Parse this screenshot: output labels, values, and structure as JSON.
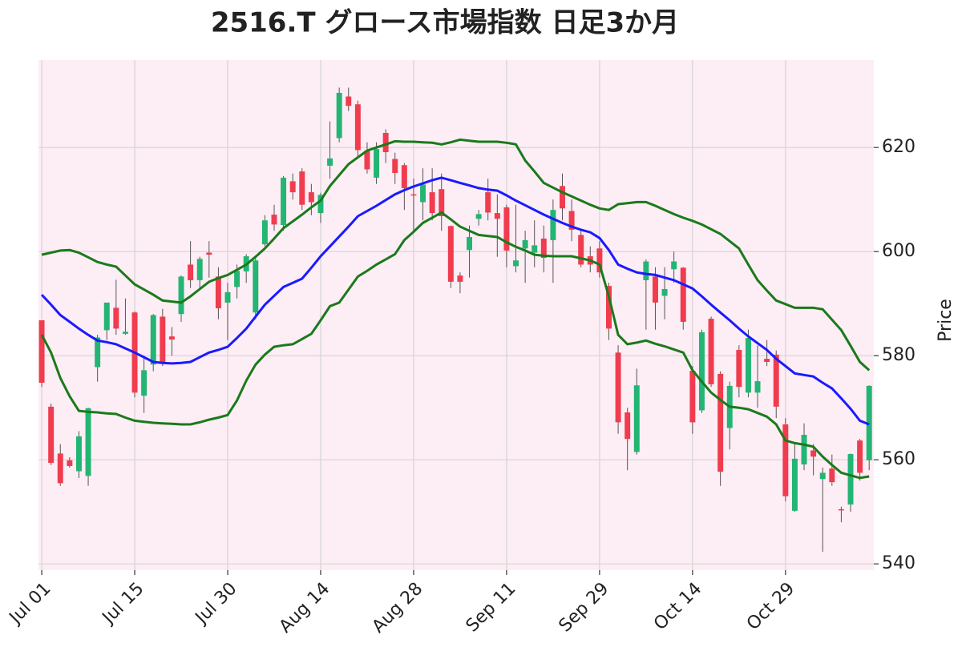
{
  "chart_data": {
    "type": "candlestick",
    "title": "2516.T グロース市場指数 日足3か月",
    "y_label": "Price",
    "categories": [
      "Jul 01",
      null,
      null,
      null,
      null,
      null,
      null,
      null,
      null,
      null,
      "Jul 15",
      null,
      null,
      null,
      null,
      null,
      null,
      null,
      null,
      null,
      "Jul 30",
      null,
      null,
      null,
      null,
      null,
      null,
      null,
      null,
      null,
      "Aug 14",
      null,
      null,
      null,
      null,
      null,
      null,
      null,
      null,
      null,
      "Aug 28",
      null,
      null,
      null,
      null,
      null,
      null,
      null,
      null,
      null,
      "Sep 11",
      null,
      null,
      null,
      null,
      null,
      null,
      null,
      null,
      null,
      "Sep 29",
      null,
      null,
      null,
      null,
      null,
      null,
      null,
      null,
      null,
      "Oct 14",
      null,
      null,
      null,
      null,
      null,
      null,
      null,
      null,
      null,
      "Oct 29",
      null,
      null,
      null,
      null,
      null,
      null,
      null,
      null,
      null
    ],
    "open": [
      586.8,
      570.2,
      561.2,
      559.9,
      557.8,
      556.9,
      577.8,
      584.9,
      589.2,
      584.2,
      588.3,
      572.3,
      578.3,
      587.5,
      583.7,
      588,
      597.5,
      594.5,
      599.8,
      595.2,
      590.2,
      593.2,
      596.2,
      588.3,
      601.4,
      607.1,
      605.1,
      613.5,
      615.4,
      611.4,
      607.4,
      616.5,
      621.8,
      629.8,
      628.3,
      619.4,
      614.2,
      622.8,
      617.8,
      616.6,
      611,
      609.5,
      611.4,
      612,
      604.9,
      595.4,
      600.3,
      606.3,
      611.4,
      607.4,
      608.5,
      597.2,
      600.6,
      599.8,
      602.5,
      602.2,
      612.6,
      607.8,
      603.2,
      599.1,
      600.6,
      593.4,
      580.6,
      569.1,
      561.5,
      594.5,
      595.2,
      591.5,
      596.6,
      596.9,
      577.1,
      569.5,
      587.1,
      576.5,
      566.1,
      581.1,
      572.9,
      572.9,
      579.4,
      580.2,
      566.8,
      550.2,
      559.1,
      561.8,
      556.3,
      558.3,
      550.5,
      551.4,
      563.7,
      559.9
    ],
    "high": [
      586.8,
      570.8,
      563,
      560.5,
      565.5,
      570,
      584,
      590.2,
      594.6,
      591,
      588.5,
      580,
      588,
      589,
      585.5,
      595.4,
      602,
      599,
      602,
      597,
      594,
      597.5,
      599.5,
      599,
      607,
      609,
      614.5,
      615,
      616,
      613,
      611.3,
      625,
      631.5,
      631.5,
      629,
      621,
      621,
      623.5,
      619,
      617,
      614,
      616,
      616,
      615,
      605,
      596,
      605,
      608,
      614,
      611,
      609,
      609,
      604,
      606,
      605,
      610,
      615,
      610,
      604,
      601,
      602,
      594,
      582,
      570,
      577.5,
      598.5,
      597,
      597,
      600,
      597,
      578,
      585,
      587.5,
      577,
      575,
      582,
      585,
      582,
      583,
      581,
      568,
      563,
      567,
      563,
      558.5,
      561,
      551,
      561.2,
      564,
      574.3
    ],
    "low": [
      574,
      559,
      555,
      558.5,
      556.5,
      555,
      575,
      583,
      584,
      584,
      572,
      569,
      577,
      578,
      580,
      586.5,
      593,
      593,
      595,
      587,
      583,
      591,
      594,
      587,
      601,
      604,
      604,
      610,
      608,
      607,
      605.5,
      614,
      621,
      627,
      618,
      615,
      613,
      617,
      613,
      608,
      604,
      606,
      606,
      604,
      593,
      592,
      595,
      605,
      606,
      599,
      597,
      596,
      594,
      597,
      596,
      594,
      606,
      602,
      597,
      596,
      595,
      583,
      565,
      558,
      561,
      585,
      585,
      587,
      594,
      585,
      565,
      569,
      574,
      555,
      562,
      572,
      572,
      570,
      578,
      568,
      552,
      550,
      558,
      557,
      542.3,
      555,
      548,
      550,
      556,
      558
    ],
    "close": [
      574.8,
      559.4,
      555.5,
      558.8,
      564.5,
      569.9,
      583.5,
      590.2,
      585.2,
      584.6,
      572.9,
      577.2,
      587.8,
      578.8,
      583.1,
      595.2,
      594.5,
      598.6,
      599.4,
      589.1,
      592.2,
      596.3,
      599.1,
      598.3,
      606,
      605.2,
      614.2,
      611.4,
      609,
      609.5,
      610.9,
      617.9,
      630.5,
      628,
      619.5,
      615.8,
      619.7,
      619.1,
      615.1,
      612.2,
      610.8,
      612.9,
      607.4,
      606.8,
      594.2,
      594.2,
      602.8,
      607.2,
      607.5,
      606.3,
      600.2,
      598.3,
      602.2,
      601.2,
      598.8,
      608,
      608.3,
      604.2,
      597.5,
      597.5,
      596,
      585.2,
      567.2,
      564,
      574.3,
      598.1,
      590.2,
      592.8,
      598.1,
      586.5,
      567.2,
      584.5,
      574.5,
      557.7,
      574.2,
      574,
      583.4,
      575.1,
      578.8,
      570.2,
      553,
      560.2,
      564.8,
      560.6,
      557.5,
      555.7,
      550.3,
      561.1,
      557.5,
      574.2
    ],
    "up_color": "#22b573",
    "down_color": "#f03c4e",
    "overlays": [
      {
        "color": "#1a7a1a",
        "values": [
          599.4,
          599.8,
          600.2,
          600.3,
          599.8,
          598.9,
          598,
          597.5,
          597.1,
          595.4,
          593.7,
          592.7,
          591.7,
          590.6,
          590.4,
          590.2,
          591.4,
          592.8,
          594.2,
          594.9,
          595.5,
          596.5,
          597.5,
          599,
          600.6,
          602.5,
          604.5,
          605.8,
          607.1,
          608.5,
          609.8,
          612.6,
          614.7,
          616.8,
          618.1,
          619.4,
          620,
          620.6,
          621.2,
          621.1,
          621.1,
          621,
          620.9,
          620.6,
          621,
          621.5,
          621.3,
          621.1,
          621.1,
          621.1,
          620.9,
          620.6,
          617.5,
          615.4,
          613.2,
          612.3,
          611.4,
          610.6,
          609.8,
          609,
          608.3,
          608,
          609.1,
          609.3,
          609.5,
          609.5,
          608.8,
          608,
          607.2,
          606.5,
          605.9,
          605.2,
          604.3,
          603.4,
          602,
          600.6,
          597.5,
          594.5,
          592.5,
          590.6,
          589.9,
          589.2,
          589.2,
          589.2,
          588.9,
          586.9,
          584.9,
          581.9,
          578.8,
          577.2
        ]
      },
      {
        "color": "#1a1aff",
        "values": [
          591.7,
          589.8,
          587.8,
          586.5,
          585.2,
          584,
          582.9,
          582.6,
          582.2,
          581.4,
          580.6,
          579.7,
          578.8,
          578.6,
          578.5,
          578.6,
          578.8,
          579.7,
          580.6,
          581.1,
          581.7,
          583.4,
          585.2,
          587.5,
          589.8,
          591.5,
          593.2,
          594,
          594.8,
          596.9,
          599.1,
          601,
          602.9,
          604.8,
          606.8,
          607.8,
          608.8,
          609.9,
          611,
          611.8,
          612.5,
          613.1,
          613.7,
          614.2,
          613.7,
          613.2,
          612.7,
          612.2,
          611.9,
          611.7,
          610.8,
          609.8,
          608.9,
          608,
          607.1,
          606.3,
          605.5,
          604.8,
          604.2,
          603.7,
          602.6,
          600.3,
          597.5,
          596.7,
          596,
          595.7,
          595.5,
          595,
          594.5,
          593.7,
          592.9,
          591.4,
          589.8,
          588.3,
          586.8,
          585.2,
          583.7,
          582.4,
          581.1,
          579.4,
          578,
          576.6,
          576.3,
          576,
          574.8,
          573.7,
          571.8,
          569.8,
          567.5,
          566.8
        ]
      },
      {
        "color": "#1a7a1a",
        "values": [
          584,
          580.6,
          575.7,
          572.2,
          569.4,
          569.2,
          569.1,
          568.9,
          568.8,
          568.1,
          567.5,
          567.3,
          567.1,
          567,
          566.9,
          566.8,
          566.8,
          567.2,
          567.7,
          568.1,
          568.6,
          571.4,
          575.2,
          578.3,
          580.2,
          581.7,
          582,
          582.2,
          583.2,
          584.2,
          586.8,
          589.5,
          590.2,
          592.7,
          595.2,
          596.3,
          597.5,
          598.5,
          599.5,
          602.2,
          603.8,
          605.5,
          606.5,
          607.5,
          606.2,
          604.8,
          604,
          603.2,
          603,
          602.8,
          601.8,
          600.9,
          600.2,
          599.4,
          599.2,
          599.1,
          599.1,
          599.1,
          598.7,
          598.3,
          597.5,
          591.4,
          584,
          582.2,
          582.5,
          582.9,
          582.3,
          581.8,
          581.2,
          580.6,
          577.2,
          575,
          572.9,
          571.5,
          570.2,
          570,
          569.7,
          569,
          568.3,
          566.8,
          563.7,
          563.2,
          562.9,
          562.5,
          560.6,
          559,
          557.5,
          557,
          556.5,
          556.8
        ]
      }
    ],
    "xlim": [
      -0.35,
      89.5
    ],
    "ylim": [
      538.8,
      636.8
    ],
    "yticks": [
      540,
      560,
      580,
      600,
      620
    ],
    "grid": true,
    "background": "#fdedf5"
  }
}
